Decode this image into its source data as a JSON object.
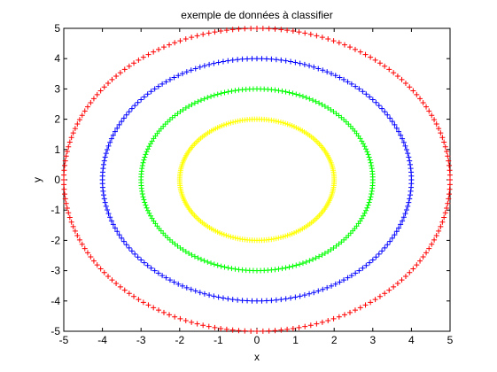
{
  "chart_data": {
    "type": "scatter",
    "title": "exemple de données à classifier",
    "xlabel": "x",
    "ylabel": "y",
    "xlim": [
      -5,
      5
    ],
    "ylim": [
      -5,
      5
    ],
    "xticks": [
      "-5",
      "-4",
      "-3",
      "-2",
      "-1",
      "0",
      "1",
      "2",
      "3",
      "4",
      "5"
    ],
    "yticks": [
      "-5",
      "-4",
      "-3",
      "-2",
      "-1",
      "0",
      "1",
      "2",
      "3",
      "4",
      "5"
    ],
    "grid": false,
    "legend": "none",
    "marker": "+",
    "series": [
      {
        "color": "#ffff00",
        "shape": "circle",
        "radius": 2,
        "points": 200
      },
      {
        "color": "#00ff00",
        "shape": "circle",
        "radius": 3,
        "points": 200
      },
      {
        "color": "#0000ff",
        "shape": "circle",
        "radius": 4,
        "points": 200
      },
      {
        "color": "#ff0000",
        "shape": "circle",
        "radius": 5,
        "points": 200
      }
    ]
  }
}
